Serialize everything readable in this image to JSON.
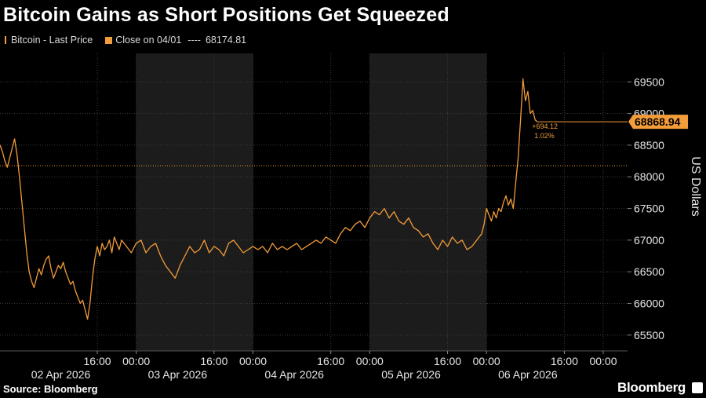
{
  "title": "Bitcoin Gains as Short Positions Get Squeezed",
  "legend": {
    "series_label": "Bitcoin - Last Price",
    "reference_label": "Close on 04/01",
    "reference_dashes": "----",
    "reference_value": "68174.81"
  },
  "source": "Source: Bloomberg",
  "brand": "Bloomberg",
  "colors": {
    "line": "#f39c3a",
    "shade": "#1c1c1c",
    "grid": "#3a3a3a"
  },
  "chart_data": {
    "type": "line",
    "title": "Bitcoin Gains as Short Positions Get Squeezed",
    "ylabel": "US Dollars",
    "ylim": [
      65250,
      69950
    ],
    "yticks": [
      65500,
      66000,
      66500,
      67000,
      67500,
      68000,
      68500,
      69000,
      69500
    ],
    "x_unit": "hours since 2026-04-02 00:00",
    "xlim": [
      -4,
      125
    ],
    "x_time_ticks": [
      {
        "x": 16,
        "label": "16:00"
      },
      {
        "x": 24,
        "label": "00:00"
      },
      {
        "x": 40,
        "label": "16:00"
      },
      {
        "x": 48,
        "label": "00:00"
      },
      {
        "x": 64,
        "label": "16:00"
      },
      {
        "x": 72,
        "label": "00:00"
      },
      {
        "x": 88,
        "label": "16:00"
      },
      {
        "x": 96,
        "label": "00:00"
      },
      {
        "x": 112,
        "label": "16:00"
      },
      {
        "x": 120,
        "label": "00:00"
      }
    ],
    "x_date_labels": [
      {
        "x": 8.5,
        "label": "02 Apr 2026"
      },
      {
        "x": 32.5,
        "label": "03 Apr 2026"
      },
      {
        "x": 56.5,
        "label": "04 Apr 2026"
      },
      {
        "x": 80.5,
        "label": "05 Apr 2026"
      },
      {
        "x": 104.5,
        "label": "06 Apr 2026"
      }
    ],
    "shaded_ranges": [
      [
        24,
        48
      ],
      [
        72,
        96
      ]
    ],
    "grid": true,
    "reference_line": {
      "label": "Close on 04/01",
      "value": 68174.81
    },
    "last_value": {
      "value": 68868.94,
      "label": "68868.94",
      "change": "+694.12",
      "change_pct": "1.02%"
    },
    "series": [
      {
        "name": "Bitcoin - Last Price",
        "x": [
          -4,
          -3.5,
          -3,
          -2.5,
          -2,
          -1.5,
          -1,
          -0.5,
          0,
          0.5,
          1,
          1.5,
          2,
          2.5,
          3,
          3.5,
          4,
          4.5,
          5,
          5.5,
          6,
          6.5,
          7,
          7.5,
          8,
          8.5,
          9,
          9.5,
          10,
          10.5,
          11,
          11.5,
          12,
          12.5,
          13,
          13.5,
          14,
          14.5,
          15,
          15.5,
          16,
          16.5,
          17,
          17.5,
          18,
          18.5,
          19,
          19.5,
          20,
          20.5,
          21,
          22,
          23,
          24,
          25,
          26,
          27,
          28,
          29,
          30,
          31,
          32,
          33,
          34,
          35,
          36,
          37,
          38,
          39,
          40,
          41,
          42,
          43,
          44,
          45,
          46,
          47,
          48,
          49,
          50,
          51,
          52,
          53,
          54,
          55,
          56,
          57,
          58,
          59,
          60,
          61,
          62,
          63,
          64,
          65,
          66,
          67,
          68,
          69,
          70,
          71,
          72,
          73,
          74,
          75,
          76,
          77,
          78,
          79,
          80,
          81,
          82,
          83,
          84,
          85,
          86,
          87,
          88,
          89,
          90,
          91,
          92,
          93,
          94,
          95,
          95.5,
          96,
          96.5,
          97,
          97.5,
          98,
          98.5,
          99,
          99.5,
          100,
          100.5,
          101,
          101.5,
          102
        ],
        "y": [
          68500,
          68400,
          68250,
          68150,
          68300,
          68450,
          68600,
          68350,
          68000,
          67600,
          67200,
          66800,
          66500,
          66350,
          66250,
          66400,
          66550,
          66450,
          66600,
          66700,
          66750,
          66550,
          66400,
          66500,
          66600,
          66550,
          66650,
          66500,
          66400,
          66300,
          66350,
          66200,
          66100,
          66000,
          66050,
          65900,
          65750,
          66000,
          66400,
          66700,
          66900,
          66750,
          66950,
          66850,
          66900,
          67000,
          66800,
          67050,
          66950,
          66850,
          67000,
          66900,
          66800,
          66950,
          67000,
          66800,
          66900,
          66950,
          66750,
          66600,
          66500,
          66400,
          66600,
          66750,
          66900,
          66800,
          66850,
          67000,
          66800,
          66900,
          66850,
          66750,
          66950,
          67000,
          66900,
          66800,
          66850,
          66900,
          66850,
          66900,
          66800,
          66950,
          66850,
          66900,
          66850,
          66900,
          66950,
          66850,
          66900,
          66950,
          67000,
          66950,
          67050,
          67000,
          66950,
          67100,
          67200,
          67150,
          67250,
          67300,
          67200,
          67350,
          67450,
          67400,
          67500,
          67350,
          67450,
          67300,
          67250,
          67350,
          67200,
          67150,
          67050,
          67100,
          66950,
          66850,
          67000,
          66900,
          67050,
          66950,
          67000,
          66850,
          66900,
          67000,
          67100,
          67250,
          67500,
          67400,
          67300,
          67450,
          67350,
          67500,
          67450,
          67600,
          67700,
          67550,
          67650,
          67500,
          67900
        ]
      }
    ]
  }
}
